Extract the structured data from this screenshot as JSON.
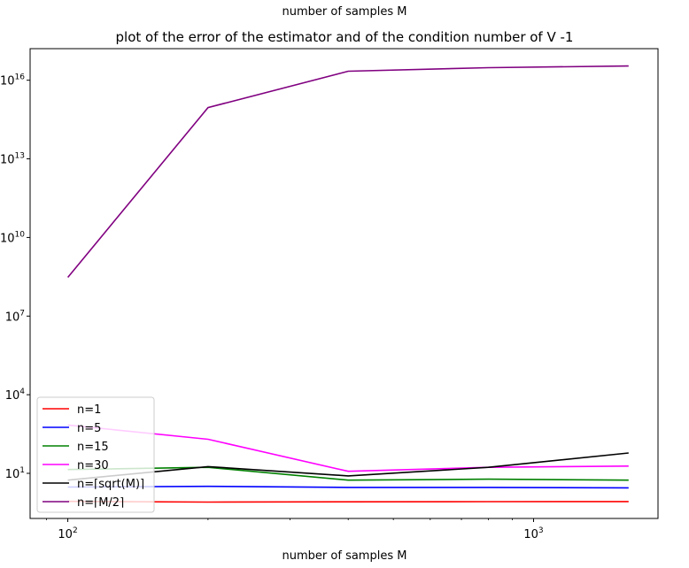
{
  "chart_data": {
    "type": "line",
    "title": "plot of the error of the estimator and of the condition number of V -1",
    "top_label": "number of samples M",
    "xlabel": "number of samples M",
    "ylabel": "",
    "xscale": "log",
    "yscale": "log",
    "xlim": [
      83,
      1850
    ],
    "ylim": [
      0.19,
      1.6e+17
    ],
    "x": [
      100,
      200,
      400,
      800,
      1600
    ],
    "x_ticks": [
      {
        "value": 100,
        "label": "10",
        "exp": "2"
      },
      {
        "value": 1000,
        "label": "10",
        "exp": "3"
      }
    ],
    "y_ticks": [
      {
        "value": 10,
        "label": "10",
        "exp": "1"
      },
      {
        "value": 10000,
        "label": "10",
        "exp": "4"
      },
      {
        "value": 10000000,
        "label": "10",
        "exp": "7"
      },
      {
        "value": 10000000000,
        "label": "10",
        "exp": "10"
      },
      {
        "value": 10000000000000,
        "label": "10",
        "exp": "13"
      },
      {
        "value": 10000000000000000,
        "label": "10",
        "exp": "16"
      }
    ],
    "legend_position": "lower-left",
    "series": [
      {
        "name": "n=1",
        "color": "#ff0000",
        "values": [
          0.85,
          0.8,
          0.82,
          0.83,
          0.84
        ]
      },
      {
        "name": "n=5",
        "color": "#0000ff",
        "values": [
          3.0,
          3.2,
          2.9,
          2.9,
          2.8
        ]
      },
      {
        "name": "n=15",
        "color": "#008000",
        "values": [
          14,
          17,
          5.5,
          6.0,
          5.5
        ]
      },
      {
        "name": "n=30",
        "color": "#ff00ff",
        "values": [
          700,
          200,
          12,
          17,
          19
        ]
      },
      {
        "name": "n=⌈sqrt(M)⌉",
        "color": "#000000",
        "values": [
          5.5,
          18,
          8,
          17,
          60
        ]
      },
      {
        "name": "n=⌈M/2⌉",
        "color": "#800080",
        "values": [
          300000000,
          900000000000000,
          2.2e+16,
          3e+16,
          3.5e+16
        ]
      }
    ]
  }
}
